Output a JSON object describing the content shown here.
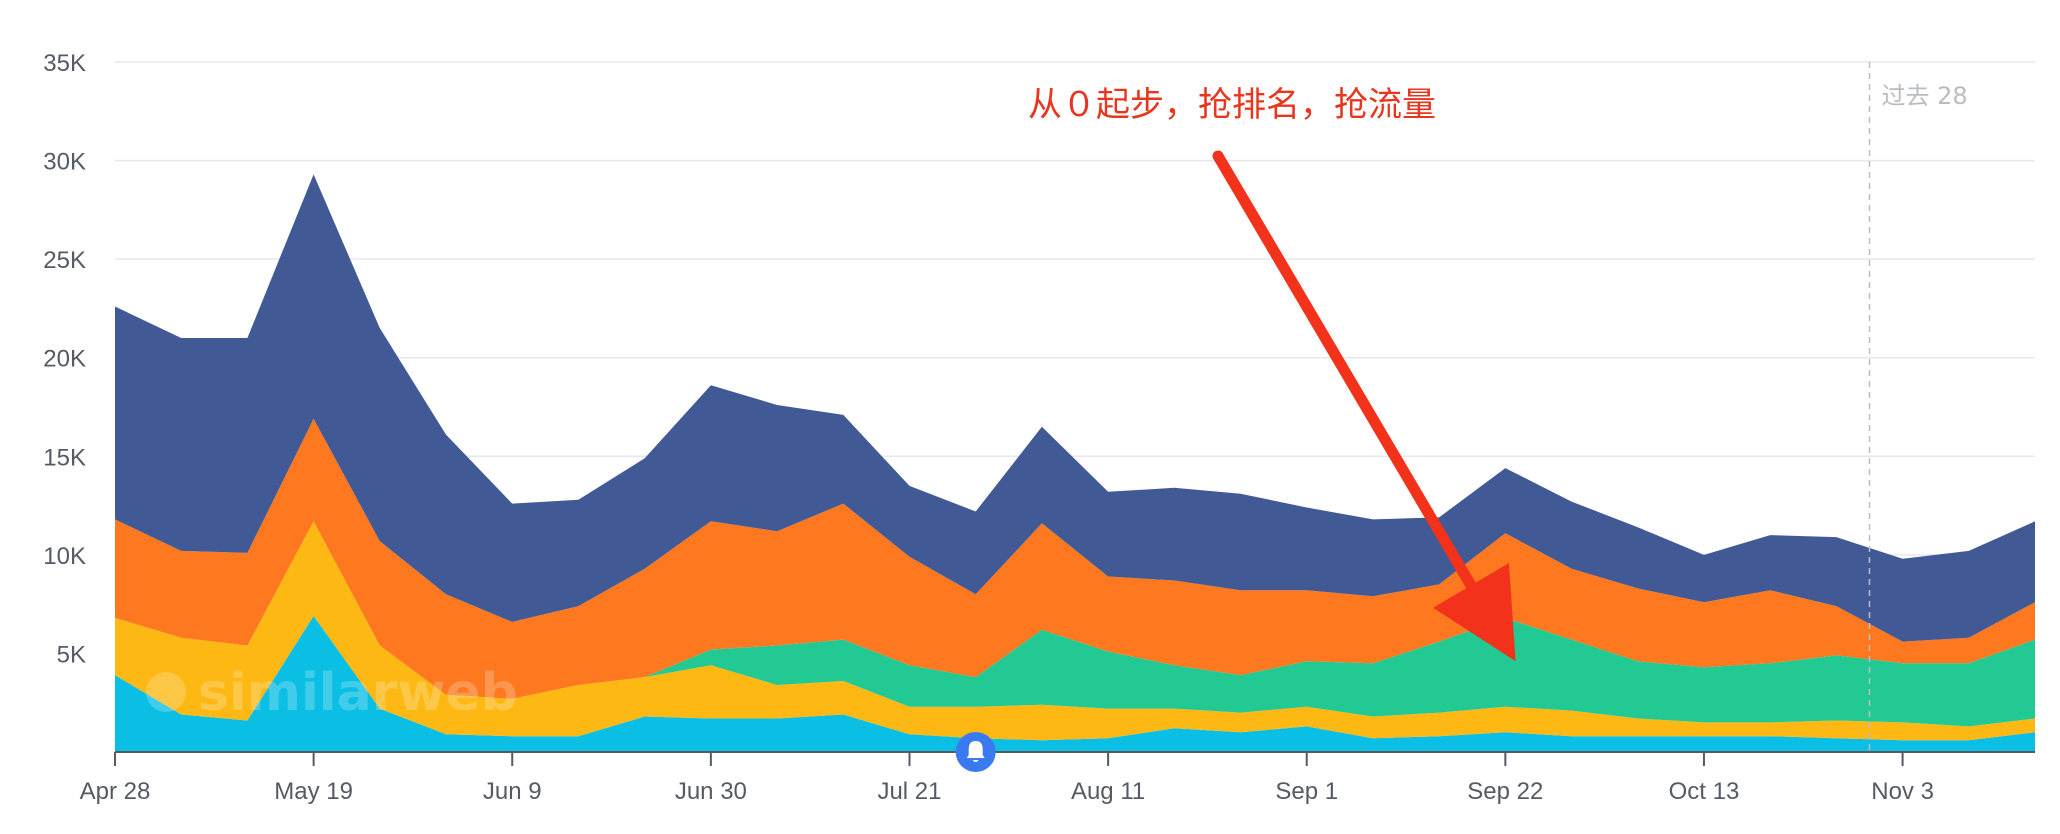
{
  "chart_data": {
    "type": "area",
    "stacked": true,
    "title": "",
    "xlabel": "",
    "ylabel": "",
    "ylim": [
      0,
      35000
    ],
    "y_ticks": [
      {
        "value": 5000,
        "label": "5K"
      },
      {
        "value": 10000,
        "label": "10K"
      },
      {
        "value": 15000,
        "label": "15K"
      },
      {
        "value": 20000,
        "label": "20K"
      },
      {
        "value": 25000,
        "label": "25K"
      },
      {
        "value": 30000,
        "label": "30K"
      },
      {
        "value": 35000,
        "label": "35K"
      }
    ],
    "x_tick_labels": [
      "Apr 28",
      "May 19",
      "Jun 9",
      "Jun 30",
      "Jul 21",
      "Aug 11",
      "Sep 1",
      "Sep 22",
      "Oct 13",
      "Nov 3"
    ],
    "x_tick_every": 3,
    "grid": true,
    "legend": "none",
    "series": [
      {
        "color": "#0bbfe4",
        "values": [
          3900,
          1900,
          1600,
          6900,
          2200,
          900,
          800,
          800,
          1800,
          1700,
          1700,
          1900,
          900,
          700,
          600,
          700,
          1200,
          1000,
          1300,
          700,
          800,
          1000,
          800,
          800,
          800,
          800,
          700,
          600,
          600,
          1000
        ]
      },
      {
        "color": "#fdb813",
        "values": [
          2900,
          3900,
          3800,
          4800,
          3200,
          2000,
          1900,
          2600,
          2000,
          2700,
          1700,
          1700,
          1400,
          1600,
          1800,
          1500,
          1000,
          1000,
          1000,
          1100,
          1200,
          1300,
          1300,
          900,
          700,
          700,
          900,
          900,
          700,
          700
        ]
      },
      {
        "color": "#22c993",
        "values": [
          0,
          0,
          0,
          0,
          0,
          0,
          0,
          0,
          0,
          800,
          2000,
          2100,
          2100,
          1500,
          3800,
          2900,
          2200,
          1900,
          2300,
          2700,
          3600,
          4500,
          3600,
          2900,
          2800,
          3000,
          3300,
          3000,
          3200,
          4000
        ]
      },
      {
        "color": "#fd781f",
        "values": [
          5000,
          4400,
          4700,
          5200,
          5300,
          5100,
          3900,
          4000,
          5500,
          6500,
          5800,
          6900,
          5500,
          4200,
          5400,
          3800,
          4300,
          4300,
          3600,
          3400,
          2900,
          4300,
          3600,
          3700,
          3300,
          3700,
          2500,
          1100,
          1300,
          1900
        ]
      },
      {
        "color": "#415a95",
        "values": [
          10800,
          10800,
          10900,
          12400,
          10800,
          8100,
          6000,
          5400,
          5600,
          6900,
          6400,
          4500,
          3600,
          4200,
          4900,
          4300,
          4700,
          4900,
          4200,
          3900,
          3400,
          3300,
          3400,
          3100,
          2400,
          2800,
          3500,
          4200,
          4400,
          4100
        ]
      }
    ],
    "annotations": [
      {
        "text": "从０起步，抢排名，抢流量",
        "type": "arrow",
        "target_x_index": 21,
        "target_y": 4500
      },
      {
        "text": "过去 28",
        "type": "vertical-line",
        "x_index": 26.5
      }
    ],
    "watermark": "similarweb",
    "event_marker": {
      "icon": "bell-icon",
      "x_index": 13,
      "color": "#3a7af0"
    }
  }
}
